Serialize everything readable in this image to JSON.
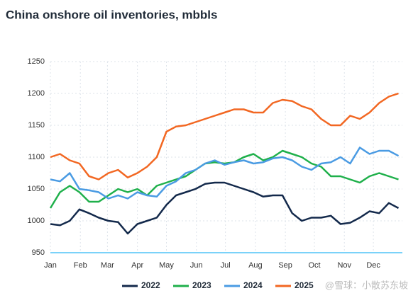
{
  "chart_data": {
    "type": "line",
    "title": "China onshore oil inventories, mbbls",
    "x": [
      1,
      11,
      21,
      31,
      41,
      51,
      61,
      71,
      81,
      91,
      101,
      111,
      121,
      131,
      141,
      151,
      161,
      171,
      181,
      191,
      201,
      211,
      221,
      231,
      241,
      251,
      261,
      271,
      281,
      291,
      301,
      311,
      321,
      331,
      341,
      351,
      361
    ],
    "xlim": [
      1,
      365
    ],
    "xticks": [
      {
        "value": 1,
        "label": "Jan"
      },
      {
        "value": 32,
        "label": "Feb"
      },
      {
        "value": 60,
        "label": "Mar"
      },
      {
        "value": 91,
        "label": "Apr"
      },
      {
        "value": 121,
        "label": "May"
      },
      {
        "value": 152,
        "label": "Jun"
      },
      {
        "value": 182,
        "label": "Jul"
      },
      {
        "value": 213,
        "label": "Aug"
      },
      {
        "value": 244,
        "label": "Sep"
      },
      {
        "value": 274,
        "label": "Oct"
      },
      {
        "value": 305,
        "label": "Nov"
      },
      {
        "value": 335,
        "label": "Dec"
      }
    ],
    "ylim": [
      950,
      1250
    ],
    "yticks": [
      950,
      1000,
      1050,
      1100,
      1150,
      1200,
      1250
    ],
    "grid": true,
    "legend": "bottom",
    "series": [
      {
        "name": "2022",
        "color": "#13294b",
        "values": [
          995,
          993,
          1000,
          1018,
          1012,
          1005,
          1000,
          998,
          980,
          995,
          1000,
          1005,
          1025,
          1040,
          1045,
          1050,
          1058,
          1060,
          1060,
          1055,
          1050,
          1045,
          1038,
          1040,
          1040,
          1012,
          1000,
          1005,
          1005,
          1008,
          995,
          997,
          1005,
          1015,
          1012,
          1028,
          1020
        ]
      },
      {
        "name": "2023",
        "color": "#1fb04b",
        "values": [
          1020,
          1045,
          1055,
          1045,
          1030,
          1030,
          1040,
          1050,
          1045,
          1050,
          1040,
          1055,
          1060,
          1065,
          1070,
          1080,
          1090,
          1092,
          1090,
          1092,
          1100,
          1105,
          1095,
          1100,
          1110,
          1105,
          1100,
          1090,
          1085,
          1070,
          1070,
          1065,
          1060,
          1070,
          1075,
          1070,
          1065
        ]
      },
      {
        "name": "2024",
        "color": "#4a9be3",
        "values": [
          1065,
          1062,
          1075,
          1050,
          1048,
          1045,
          1035,
          1040,
          1035,
          1045,
          1040,
          1038,
          1055,
          1062,
          1075,
          1080,
          1090,
          1095,
          1088,
          1092,
          1095,
          1090,
          1092,
          1098,
          1100,
          1095,
          1085,
          1080,
          1090,
          1092,
          1100,
          1090,
          1115,
          1105,
          1110,
          1110,
          1102
        ]
      },
      {
        "name": "2025",
        "color": "#f26722",
        "values": [
          1100,
          1105,
          1095,
          1090,
          1070,
          1065,
          1075,
          1080,
          1068,
          1075,
          1085,
          1100,
          1140,
          1148,
          1150,
          1155,
          1160,
          1165,
          1170,
          1175,
          1175,
          1170,
          1170,
          1185,
          1190,
          1188,
          1180,
          1175,
          1160,
          1150,
          1150,
          1165,
          1160,
          1170,
          1185,
          1195,
          1200
        ]
      }
    ],
    "watermark": "@雪球：小散苏东坡"
  }
}
